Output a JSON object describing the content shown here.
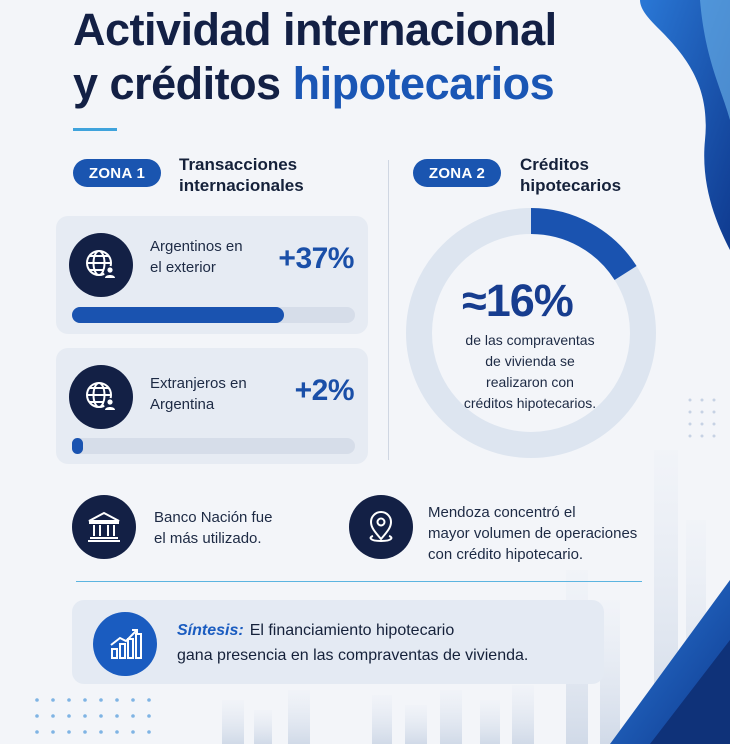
{
  "title": {
    "line1": "Actividad internacional",
    "line2_plain": "y créditos ",
    "line2_accent": "hipotecarios"
  },
  "zone1": {
    "pill": "ZONA 1",
    "title_line1": "Transacciones",
    "title_line2": "internacionales",
    "cards": [
      {
        "label_line1": "Argentinos en",
        "label_line2": "el exterior",
        "value": "+37%",
        "fill_fraction": 0.75,
        "icon": "globe-user-icon"
      },
      {
        "label_line1": "Extranjeros en",
        "label_line2": "Argentina",
        "value": "+2%",
        "fill_fraction": 0.04,
        "icon": "globe-user-icon"
      }
    ]
  },
  "zone2": {
    "pill": "ZONA 2",
    "title_line1": "Créditos",
    "title_line2": "hipotecarios",
    "donut": {
      "value": "≈16%",
      "fraction": 0.16,
      "text_line1": "de las compraventas",
      "text_line2": "de vivienda se",
      "text_line3": "realizaron con",
      "text_line4": "créditos hipotecarios."
    }
  },
  "facts": [
    {
      "icon": "bank-icon",
      "line1": "Banco Nación fue",
      "line2": "el más utilizado."
    },
    {
      "icon": "location-pin-icon",
      "line1": "Mendoza concentró el",
      "line2": "mayor volumen de operaciones",
      "line3": "con crédito hipotecario."
    }
  ],
  "synthesis": {
    "label": "Síntesis:",
    "line1": "El financiamiento hipotecario",
    "line2": "gana presencia en las compraventas de vivienda.",
    "icon": "growth-chart-icon"
  },
  "colors": {
    "navy": "#132045",
    "accent_blue": "#1a56b5",
    "light_blue": "#3fa3dc",
    "card_bg": "#e6ebf3"
  }
}
